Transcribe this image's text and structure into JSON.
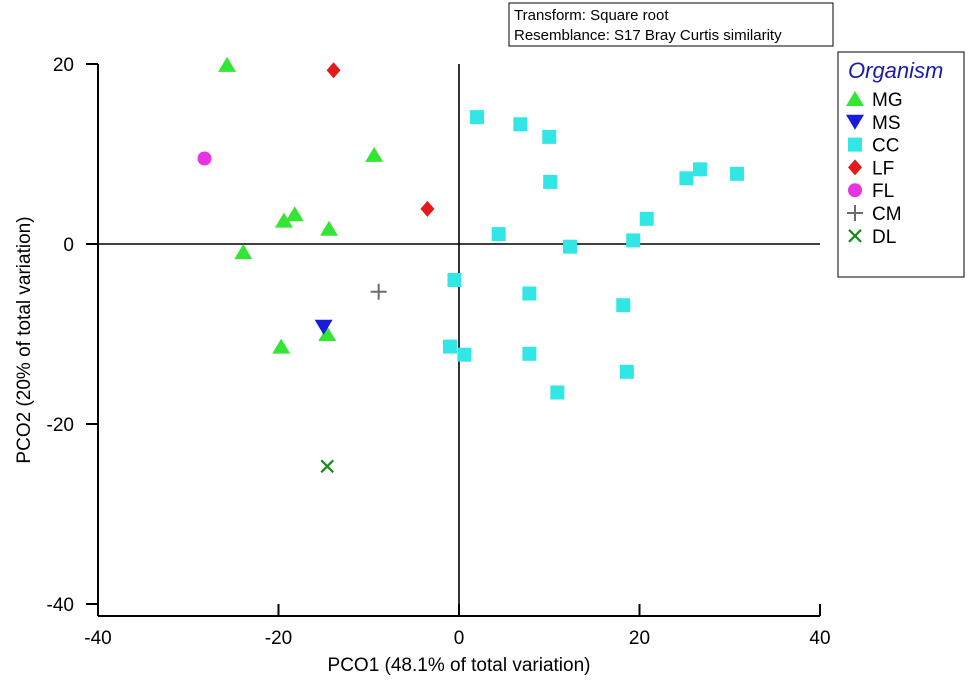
{
  "chart_data": {
    "type": "scatter",
    "title": "",
    "xlabel": "PCO1 (48.1% of total variation)",
    "ylabel": "PCO2 (20% of total variation)",
    "xlim": [
      -40,
      40
    ],
    "ylim": [
      -40,
      20
    ],
    "xticks": [
      -40,
      -20,
      0,
      20,
      40
    ],
    "yticks": [
      -40,
      -20,
      0,
      20
    ],
    "xtick_labels": [
      "-40",
      "-20",
      "0",
      "20",
      "40"
    ],
    "ytick_labels": [
      "-40",
      "-20",
      "0",
      "20"
    ],
    "annotation": {
      "transform": "Transform: Square root",
      "resemblance": "Resemblance: S17 Bray Curtis similarity"
    },
    "legend": {
      "title": "Organism",
      "title_color": "#1a1aa8",
      "location": "right"
    },
    "series": [
      {
        "name": "MG",
        "marker": "triangle-up",
        "color": "#33e633",
        "x": [
          -25.7,
          -9.4,
          -18.2,
          -19.4,
          -14.4,
          -23.9,
          -19.7,
          -14.6
        ],
        "y": [
          19.9,
          9.9,
          3.3,
          2.6,
          1.7,
          -0.9,
          -11.4,
          -10.0
        ]
      },
      {
        "name": "MS",
        "marker": "triangle-down",
        "color": "#1a1ad9",
        "x": [
          -15.0
        ],
        "y": [
          -9.2
        ]
      },
      {
        "name": "CC",
        "marker": "square",
        "color": "#33e6e6",
        "x": [
          2.0,
          6.8,
          10.0,
          10.1,
          25.2,
          26.7,
          30.8,
          20.8,
          4.4,
          12.3,
          19.3,
          -0.5,
          7.8,
          18.2,
          -1.0,
          0.6,
          7.8,
          18.6,
          10.9
        ],
        "y": [
          14.1,
          13.3,
          11.9,
          6.9,
          7.3,
          8.3,
          7.8,
          2.8,
          1.1,
          -0.3,
          0.4,
          -4.0,
          -5.5,
          -6.8,
          -11.4,
          -12.3,
          -12.2,
          -14.2,
          -16.5
        ]
      },
      {
        "name": "LF",
        "marker": "diamond",
        "color": "#e61a1a",
        "x": [
          -13.9,
          -3.5
        ],
        "y": [
          19.3,
          3.9
        ]
      },
      {
        "name": "FL",
        "marker": "circle",
        "color": "#e633e6",
        "x": [
          -28.2
        ],
        "y": [
          9.5
        ]
      },
      {
        "name": "CM",
        "marker": "plus",
        "color": "#6b6b6b",
        "x": [
          -8.9
        ],
        "y": [
          -5.3
        ]
      },
      {
        "name": "DL",
        "marker": "x",
        "color": "#1a8c1a",
        "x": [
          -14.6
        ],
        "y": [
          -24.7
        ]
      }
    ]
  }
}
